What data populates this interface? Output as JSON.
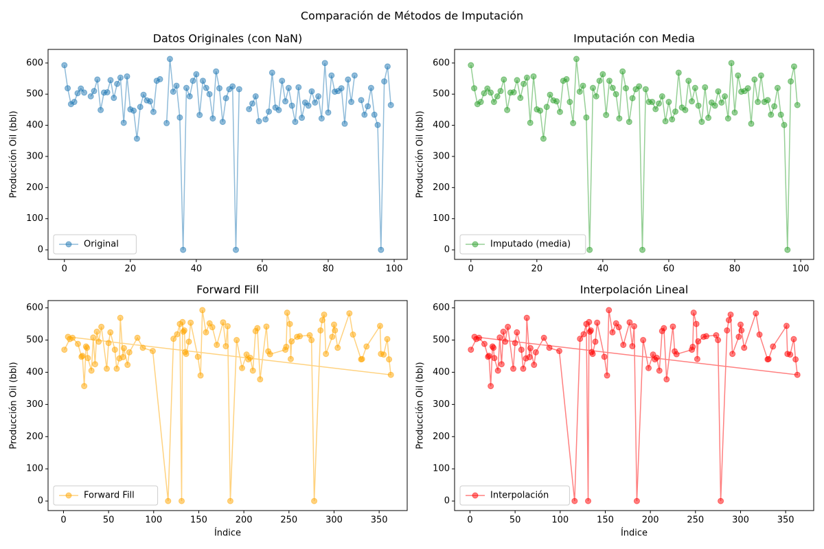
{
  "title": "Comparación de Métodos de Imputación",
  "chart_data": [
    {
      "type": "line",
      "title": "Datos Originales (con NaN)",
      "ylabel": "Producción Oil (bbl)",
      "x": [
        0,
        1,
        2,
        3,
        4,
        5,
        6,
        7,
        8,
        9,
        10,
        11,
        12,
        13,
        14,
        15,
        16,
        17,
        18,
        19,
        20,
        21,
        22,
        23,
        24,
        25,
        26,
        27,
        28,
        29,
        30,
        31,
        32,
        33,
        34,
        35,
        36,
        37,
        38,
        39,
        40,
        41,
        42,
        43,
        44,
        45,
        46,
        47,
        48,
        49,
        50,
        51,
        52,
        53,
        54,
        55,
        56,
        57,
        58,
        59,
        60,
        61,
        62,
        63,
        64,
        65,
        66,
        67,
        68,
        69,
        70,
        71,
        72,
        73,
        74,
        75,
        76,
        77,
        78,
        79,
        80,
        81,
        82,
        83,
        84,
        85,
        86,
        87,
        88,
        89,
        90,
        91,
        92,
        93,
        94,
        95,
        96,
        97,
        98,
        99
      ],
      "series": [
        {
          "name": "Original",
          "color": "#1f77b4",
          "values": [
            593,
            519,
            468,
            475,
            503,
            518,
            505,
            null,
            493,
            510,
            547,
            449,
            505,
            506,
            545,
            488,
            533,
            553,
            408,
            557,
            451,
            447,
            357,
            459,
            498,
            480,
            477,
            443,
            543,
            548,
            null,
            407,
            613,
            508,
            527,
            425,
            0,
            520,
            493,
            543,
            564,
            433,
            543,
            520,
            500,
            422,
            573,
            519,
            411,
            487,
            516,
            525,
            0,
            516,
            null,
            null,
            452,
            470,
            493,
            413,
            null,
            419,
            444,
            569,
            457,
            449,
            543,
            477,
            520,
            463,
            411,
            522,
            424,
            473,
            463,
            509,
            473,
            493,
            422,
            600,
            441,
            560,
            508,
            510,
            519,
            405,
            547,
            475,
            560,
            null,
            481,
            434,
            461,
            520,
            434,
            401,
            0,
            541,
            589,
            465
          ]
        }
      ],
      "xlim": [
        -4.95,
        103.95
      ],
      "ylim": [
        -30.7,
        643.7
      ],
      "xticks": [
        0,
        20,
        40,
        60,
        80,
        100
      ],
      "yticks": [
        0,
        100,
        200,
        300,
        400,
        500,
        600
      ],
      "legend": "lower left"
    },
    {
      "type": "line",
      "title": "Imputación con Media",
      "ylabel": "Producción Oil (bbl)",
      "x": [
        0,
        1,
        2,
        3,
        4,
        5,
        6,
        7,
        8,
        9,
        10,
        11,
        12,
        13,
        14,
        15,
        16,
        17,
        18,
        19,
        20,
        21,
        22,
        23,
        24,
        25,
        26,
        27,
        28,
        29,
        30,
        31,
        32,
        33,
        34,
        35,
        36,
        37,
        38,
        39,
        40,
        41,
        42,
        43,
        44,
        45,
        46,
        47,
        48,
        49,
        50,
        51,
        52,
        53,
        54,
        55,
        56,
        57,
        58,
        59,
        60,
        61,
        62,
        63,
        64,
        65,
        66,
        67,
        68,
        69,
        70,
        71,
        72,
        73,
        74,
        75,
        76,
        77,
        78,
        79,
        80,
        81,
        82,
        83,
        84,
        85,
        86,
        87,
        88,
        89,
        90,
        91,
        92,
        93,
        94,
        95,
        96,
        97,
        98,
        99
      ],
      "series": [
        {
          "name": "Imputado (media)",
          "color": "#2ca02c",
          "values": [
            593,
            519,
            468,
            475,
            503,
            518,
            505,
            475,
            493,
            510,
            547,
            449,
            505,
            506,
            545,
            488,
            533,
            553,
            408,
            557,
            451,
            447,
            357,
            459,
            498,
            480,
            477,
            443,
            543,
            548,
            475,
            407,
            613,
            508,
            527,
            425,
            0,
            520,
            493,
            543,
            564,
            433,
            543,
            520,
            500,
            422,
            573,
            519,
            411,
            487,
            516,
            525,
            0,
            516,
            475,
            475,
            452,
            470,
            493,
            413,
            475,
            419,
            444,
            569,
            457,
            449,
            543,
            477,
            520,
            463,
            411,
            522,
            424,
            473,
            463,
            509,
            473,
            493,
            422,
            600,
            441,
            560,
            508,
            510,
            519,
            405,
            547,
            475,
            560,
            475,
            481,
            434,
            461,
            520,
            434,
            401,
            0,
            541,
            589,
            465
          ]
        }
      ],
      "xlim": [
        -4.95,
        103.95
      ],
      "ylim": [
        -30.7,
        643.7
      ],
      "xticks": [
        0,
        20,
        40,
        60,
        80,
        100
      ],
      "yticks": [
        0,
        100,
        200,
        300,
        400,
        500,
        600
      ],
      "legend": "lower left"
    },
    {
      "type": "line",
      "title": "Forward Fill",
      "xlabel": "Índice",
      "ylabel": "Producción Oil (bbl)",
      "x": [
        1,
        7,
        10,
        16,
        20,
        21,
        23,
        25,
        26,
        27,
        31,
        33,
        35,
        37,
        39,
        42,
        48,
        50,
        52,
        57,
        59,
        62,
        63,
        66,
        67,
        71,
        73,
        82,
        88,
        99,
        116,
        122,
        126,
        129,
        131,
        132,
        133,
        134,
        135,
        136,
        139,
        141,
        149,
        152,
        154,
        158,
        162,
        165,
        170,
        177,
        180,
        182,
        185,
        192,
        198,
        203,
        205,
        207,
        210,
        213,
        215,
        218,
        225,
        227,
        229,
        246,
        247,
        248,
        251,
        252,
        253,
        259,
        262,
        273,
        275,
        278,
        285,
        287,
        289,
        291,
        298,
        300,
        301,
        304,
        317,
        321,
        330,
        331,
        336,
        351,
        352,
        355,
        359,
        361,
        363,
        5
      ],
      "series": [
        {
          "name": "Forward Fill",
          "color": "#ffa500",
          "values": [
            470,
            503,
            507,
            488,
            448,
            451,
            357,
            480,
            476,
            444,
            405,
            508,
            425,
            526,
            495,
            541,
            411,
            491,
            524,
            470,
            411,
            443,
            569,
            447,
            475,
            423,
            462,
            507,
            476,
            466,
            0,
            504,
            518,
            550,
            0,
            556,
            526,
            530,
            463,
            457,
            495,
            554,
            448,
            390,
            593,
            524,
            552,
            540,
            485,
            555,
            481,
            543,
            0,
            500,
            413,
            455,
            440,
            445,
            405,
            528,
            537,
            378,
            542,
            465,
            456,
            470,
            479,
            585,
            550,
            441,
            496,
            510,
            512,
            515,
            500,
            0,
            530,
            562,
            579,
            457,
            510,
            548,
            530,
            476,
            583,
            517,
            440,
            441,
            480,
            544,
            457,
            455,
            503,
            440,
            392,
            510
          ]
        }
      ],
      "xlim": [
        -17.1,
        381.1
      ],
      "ylim": [
        -29.65,
        622.65
      ],
      "xticks": [
        0,
        50,
        100,
        150,
        200,
        250,
        300,
        350
      ],
      "yticks": [
        0,
        100,
        200,
        300,
        400,
        500,
        600
      ],
      "legend": "lower left"
    },
    {
      "type": "line",
      "title": "Interpolación Lineal",
      "xlabel": "Índice",
      "ylabel": "Producción Oil (bbl)",
      "x": [
        1,
        7,
        10,
        16,
        20,
        21,
        23,
        25,
        26,
        27,
        31,
        33,
        35,
        37,
        39,
        42,
        48,
        50,
        52,
        57,
        59,
        62,
        63,
        66,
        67,
        71,
        73,
        82,
        88,
        99,
        116,
        122,
        126,
        129,
        131,
        132,
        133,
        134,
        135,
        136,
        139,
        141,
        149,
        152,
        154,
        158,
        162,
        165,
        170,
        177,
        180,
        182,
        185,
        192,
        198,
        203,
        205,
        207,
        210,
        213,
        215,
        218,
        225,
        227,
        229,
        246,
        247,
        248,
        251,
        252,
        253,
        259,
        262,
        273,
        275,
        278,
        285,
        287,
        289,
        291,
        298,
        300,
        301,
        304,
        317,
        321,
        330,
        331,
        336,
        351,
        352,
        355,
        359,
        361,
        363,
        5
      ],
      "series": [
        {
          "name": "Interpolación",
          "color": "#ff0000",
          "values": [
            470,
            503,
            507,
            488,
            448,
            451,
            357,
            480,
            476,
            444,
            405,
            508,
            425,
            526,
            495,
            541,
            411,
            491,
            524,
            470,
            411,
            443,
            569,
            447,
            475,
            423,
            462,
            507,
            476,
            466,
            0,
            504,
            518,
            550,
            0,
            556,
            526,
            530,
            463,
            457,
            495,
            554,
            448,
            390,
            593,
            524,
            552,
            540,
            485,
            555,
            481,
            543,
            0,
            500,
            413,
            455,
            440,
            445,
            405,
            528,
            537,
            378,
            542,
            465,
            456,
            470,
            479,
            585,
            550,
            441,
            496,
            510,
            512,
            515,
            500,
            0,
            530,
            562,
            579,
            457,
            510,
            548,
            530,
            476,
            583,
            517,
            440,
            441,
            480,
            544,
            457,
            455,
            503,
            440,
            392,
            510
          ]
        }
      ],
      "xlim": [
        -17.1,
        381.1
      ],
      "ylim": [
        -29.65,
        622.65
      ],
      "xticks": [
        0,
        50,
        100,
        150,
        200,
        250,
        300,
        350
      ],
      "yticks": [
        0,
        100,
        200,
        300,
        400,
        500,
        600
      ],
      "legend": "lower left"
    }
  ]
}
